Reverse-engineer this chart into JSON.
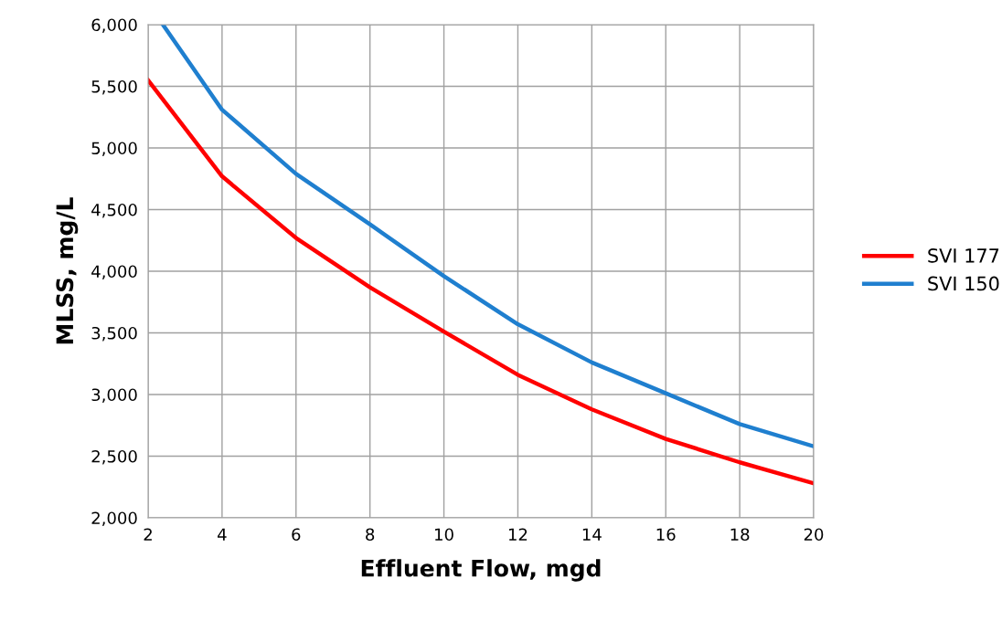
{
  "chart_data": {
    "type": "line",
    "xlabel": "Effluent Flow, mgd",
    "ylabel": "MLSS, mg/L",
    "x": [
      2,
      4,
      6,
      8,
      10,
      12,
      14,
      16,
      18,
      20
    ],
    "series": [
      {
        "name": "SVI 177",
        "color": "#ff0000",
        "values": [
          5550,
          4770,
          4270,
          3870,
          3510,
          3160,
          2880,
          2640,
          2450,
          2280
        ]
      },
      {
        "name": "SVI 150",
        "color": "#1f7fcf",
        "x": [
          2.4,
          4,
          6,
          8,
          10,
          12,
          14,
          16,
          18,
          20
        ],
        "values": [
          6000,
          5310,
          4790,
          4380,
          3960,
          3570,
          3260,
          3010,
          2760,
          2580
        ]
      }
    ],
    "xlim": [
      2,
      20
    ],
    "xticks": [
      2,
      4,
      6,
      8,
      10,
      12,
      14,
      16,
      18,
      20
    ],
    "ylim": [
      2000,
      6000
    ],
    "yticks": [
      {
        "value": 2000,
        "label": "2,000"
      },
      {
        "value": 2500,
        "label": "2,500"
      },
      {
        "value": 3000,
        "label": "3,000"
      },
      {
        "value": 3500,
        "label": "3,500"
      },
      {
        "value": 4000,
        "label": "4,000"
      },
      {
        "value": 4500,
        "label": "4,500"
      },
      {
        "value": 5000,
        "label": "5,000"
      },
      {
        "value": 5500,
        "label": "5,500"
      },
      {
        "value": 6000,
        "label": "6,000"
      }
    ],
    "grid": true,
    "legend": "right",
    "marker": "none",
    "line_style": "solid"
  }
}
